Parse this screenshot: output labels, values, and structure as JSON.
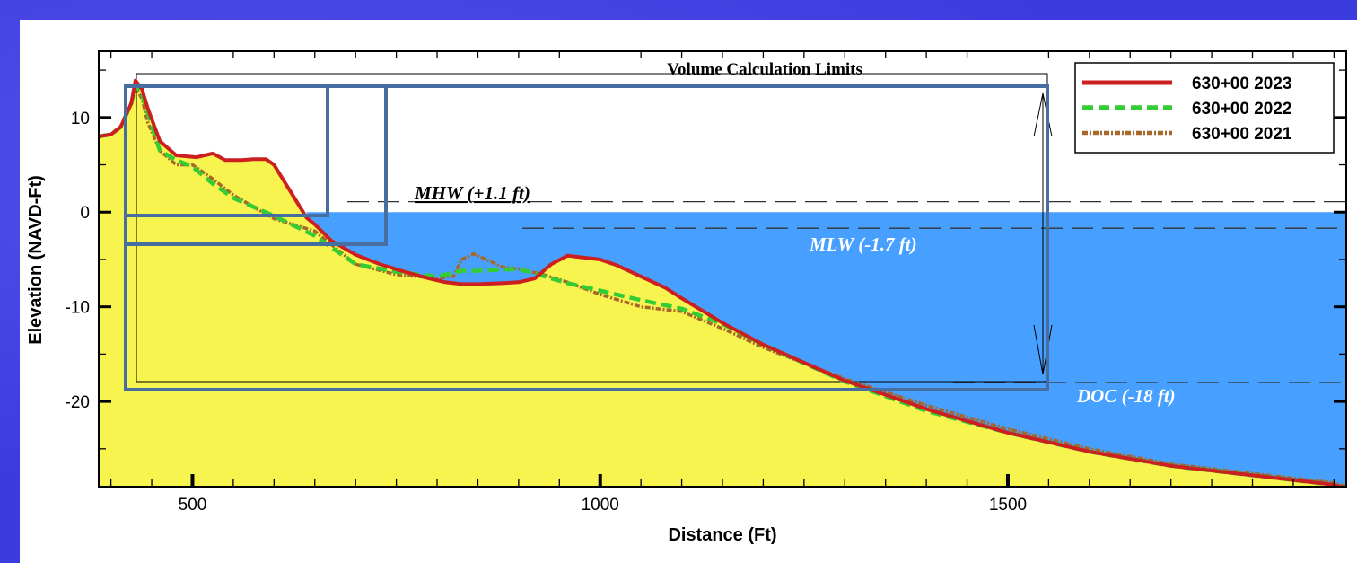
{
  "chart_data": {
    "type": "line",
    "title": "",
    "xlabel": "Distance (Ft)",
    "ylabel": "Elevation (NAVD-Ft)",
    "xlim": [
      385,
      1915
    ],
    "ylim": [
      -29,
      17
    ],
    "x_ticks": [
      500,
      1000,
      1500
    ],
    "y_ticks": [
      10,
      0,
      -10,
      -20
    ],
    "legend_position": "top-right",
    "series": [
      {
        "name": "630+00 2023",
        "color": "#cc1f1f",
        "style": "solid",
        "x": [
          385,
          400,
          412,
          425,
          430,
          438,
          445,
          460,
          480,
          505,
          525,
          540,
          560,
          575,
          590,
          600,
          640,
          650,
          670,
          700,
          730,
          760,
          790,
          810,
          830,
          850,
          880,
          900,
          920,
          940,
          960,
          980,
          1000,
          1020,
          1050,
          1080,
          1100,
          1150,
          1200,
          1300,
          1400,
          1500,
          1600,
          1700,
          1800,
          1900,
          1915
        ],
        "y": [
          8.0,
          8.2,
          9.0,
          11.5,
          13.9,
          13.0,
          11.0,
          7.5,
          6.0,
          5.8,
          6.2,
          5.5,
          5.5,
          5.6,
          5.6,
          5.0,
          -0.6,
          -1.3,
          -3.0,
          -4.5,
          -5.5,
          -6.3,
          -7.0,
          -7.4,
          -7.6,
          -7.6,
          -7.5,
          -7.4,
          -7.0,
          -5.5,
          -4.6,
          -4.8,
          -5.0,
          -5.6,
          -6.8,
          -8.0,
          -9.1,
          -11.7,
          -14.0,
          -17.8,
          -20.8,
          -23.3,
          -25.3,
          -26.8,
          -27.8,
          -28.8,
          -29.2
        ]
      },
      {
        "name": "630+00 2022",
        "color": "#33cc33",
        "style": "dashed",
        "x": [
          385,
          400,
          412,
          425,
          430,
          438,
          445,
          460,
          480,
          500,
          525,
          550,
          600,
          650,
          700,
          750,
          800,
          830,
          850,
          900,
          940,
          960,
          1000,
          1050,
          1100,
          1150,
          1200,
          1300,
          1400,
          1500,
          1600,
          1700,
          1800,
          1900,
          1915
        ],
        "y": [
          8.0,
          8.2,
          9.0,
          11.5,
          13.4,
          12.5,
          10.5,
          6.5,
          5.5,
          4.8,
          3.0,
          1.5,
          -0.4,
          -2.5,
          -5.5,
          -6.3,
          -6.8,
          -6.2,
          -6.2,
          -6.0,
          -7.0,
          -7.5,
          -8.3,
          -9.3,
          -10.2,
          -11.8,
          -14.0,
          -17.9,
          -21.0,
          -23.3,
          -25.3,
          -26.8,
          -27.8,
          -28.8,
          -29.2
        ]
      },
      {
        "name": "630+00 2021",
        "color": "#a5682a",
        "style": "dashdot",
        "x": [
          385,
          400,
          412,
          425,
          430,
          438,
          445,
          460,
          480,
          500,
          525,
          550,
          600,
          650,
          700,
          750,
          800,
          820,
          830,
          845,
          860,
          880,
          900,
          930,
          960,
          1000,
          1050,
          1100,
          1150,
          1200,
          1300,
          1400,
          1500,
          1600,
          1700,
          1800,
          1900,
          1915
        ],
        "y": [
          8.0,
          8.2,
          9.0,
          11.5,
          13.2,
          12.0,
          9.5,
          6.5,
          5.0,
          5.0,
          3.5,
          1.8,
          -0.7,
          -2.0,
          -5.5,
          -6.6,
          -7.0,
          -6.8,
          -5.0,
          -4.4,
          -5.0,
          -5.8,
          -6.0,
          -6.6,
          -7.4,
          -8.7,
          -10.0,
          -10.5,
          -12.3,
          -14.3,
          -17.6,
          -20.4,
          -22.9,
          -25.0,
          -26.6,
          -27.6,
          -28.6,
          -29.0
        ]
      }
    ],
    "annotations": [
      {
        "text": "MHW (+1.1 ft)",
        "elevation": 1.1
      },
      {
        "text": "MLW (-1.7 ft)",
        "elevation": -1.7
      },
      {
        "text": "DOC (-18 ft)",
        "elevation": -18
      },
      {
        "text": "Volume Calculation Limits"
      }
    ],
    "water_level": 0,
    "grid": false
  }
}
